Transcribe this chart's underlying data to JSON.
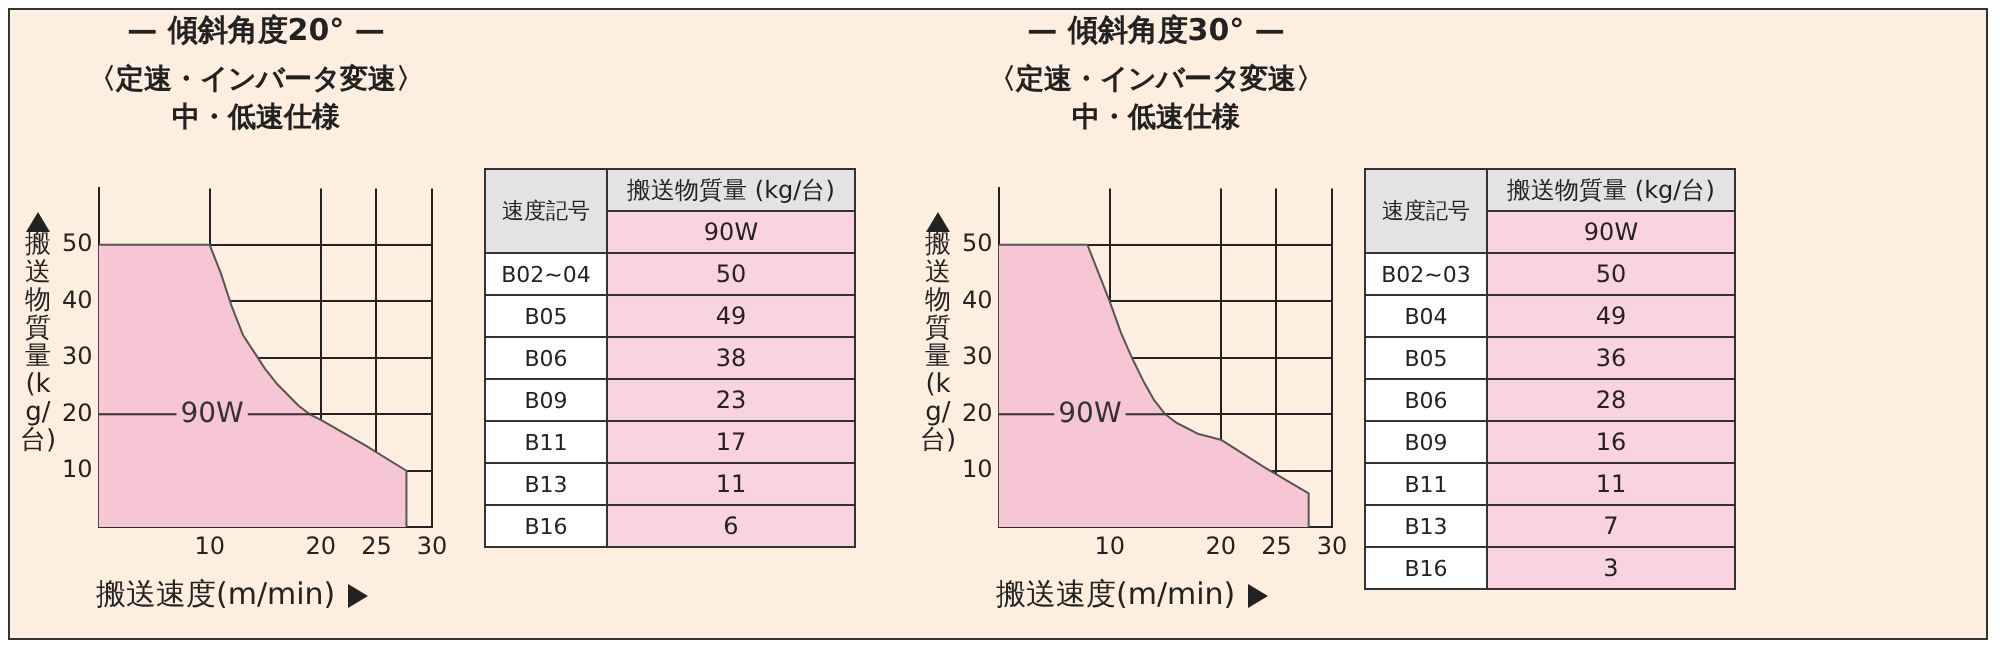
{
  "chart_data": [
    {
      "type": "area",
      "title": "— 傾斜角度20° —",
      "subtitle": "〈定速・インバータ変速〉中・低速仕様",
      "xlabel": "搬送速度(m/min)",
      "ylabel": "搬送物質量(kg/台)",
      "xlim": [
        0,
        30
      ],
      "xticks": [
        10,
        20,
        25,
        30
      ],
      "ylim": [
        0,
        60
      ],
      "yticks": [
        10,
        20,
        30,
        40,
        50
      ],
      "grid": true,
      "series": [
        {
          "color": "#f6c6d4",
          "x": [
            0,
            10,
            11,
            12,
            13,
            14,
            15,
            16,
            17,
            18,
            19,
            20,
            24,
            27.7,
            27.7
          ],
          "values": [
            50,
            50,
            45,
            39,
            34,
            31,
            28,
            25.5,
            23.5,
            21.5,
            20,
            19,
            14.5,
            10,
            0
          ]
        }
      ],
      "annotations": [
        {
          "text": "90W",
          "x": 19,
          "y": 20
        }
      ]
    },
    {
      "type": "other",
      "xlabel": "速度記号",
      "ylabel": "搬送物質量 (kg/台)",
      "categories": [
        "B02~04",
        "B05",
        "B06",
        "B09",
        "B11",
        "B13",
        "B16"
      ],
      "series": [
        {
          "name": "90W",
          "values": [
            50,
            49,
            38,
            23,
            17,
            11,
            6
          ]
        }
      ],
      "data_labels": true
    },
    {
      "type": "area",
      "title": "— 傾斜角度30° —",
      "subtitle": "〈定速・インバータ変速〉中・低速仕様",
      "xlabel": "搬送速度(m/min)",
      "ylabel": "搬送物質量(kg/台)",
      "xlim": [
        0,
        30
      ],
      "xticks": [
        10,
        20,
        25,
        30
      ],
      "ylim": [
        0,
        60
      ],
      "yticks": [
        10,
        20,
        30,
        40,
        50
      ],
      "grid": true,
      "series": [
        {
          "color": "#f6c6d4",
          "x": [
            0,
            8,
            9,
            10,
            11,
            12,
            13,
            14,
            15,
            16,
            18,
            20,
            24,
            27.9,
            27.9
          ],
          "values": [
            50,
            50,
            45,
            40,
            34.5,
            30,
            26,
            22.5,
            20,
            18.5,
            16.5,
            15.5,
            10.5,
            6,
            0
          ]
        }
      ],
      "annotations": [
        {
          "text": "90W",
          "x": 15,
          "y": 20
        }
      ]
    },
    {
      "type": "other",
      "xlabel": "速度記号",
      "ylabel": "搬送物質量 (kg/台)",
      "categories": [
        "B02~03",
        "B04",
        "B05",
        "B06",
        "B09",
        "B11",
        "B13",
        "B16"
      ],
      "series": [
        {
          "name": "90W",
          "values": [
            50,
            49,
            36,
            28,
            16,
            11,
            7,
            3
          ]
        }
      ],
      "data_labels": true
    }
  ]
}
